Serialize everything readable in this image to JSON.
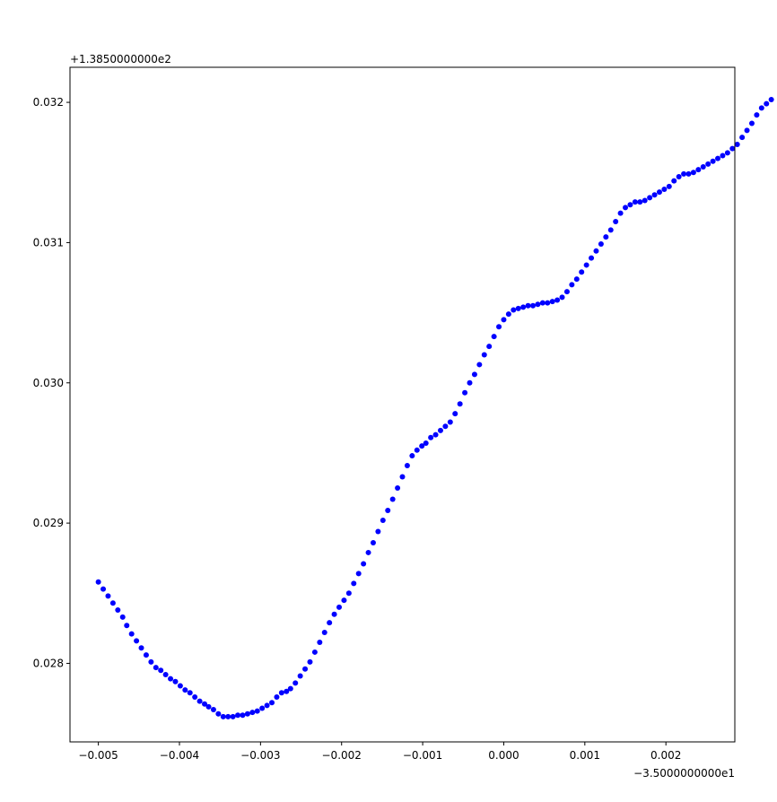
{
  "chart_data": {
    "type": "scatter",
    "title": "",
    "xlabel": "",
    "ylabel": "",
    "x_offset_label": "−3.5000000000e1",
    "y_offset_label": "+1.3850000000e2",
    "xlim": [
      -0.00535,
      0.00285
    ],
    "ylim": [
      0.02744,
      0.03225
    ],
    "x_ticks": [
      -0.005,
      -0.004,
      -0.003,
      -0.002,
      -0.001,
      0.0,
      0.001,
      0.002
    ],
    "x_tick_labels": [
      "−0.005",
      "−0.004",
      "−0.003",
      "−0.002",
      "−0.001",
      "0.000",
      "0.001",
      "0.002"
    ],
    "y_ticks": [
      0.028,
      0.029,
      0.03,
      0.031,
      0.032
    ],
    "y_tick_labels": [
      "0.028",
      "0.029",
      "0.030",
      "0.031",
      "0.032"
    ],
    "grid": false,
    "marker_color": "#0000ff",
    "series": [
      {
        "points": [
          [
            -0.005,
            0.02858
          ],
          [
            -0.00494,
            0.02853
          ],
          [
            -0.00488,
            0.02848
          ],
          [
            -0.00482,
            0.02843
          ],
          [
            -0.00476,
            0.02838
          ],
          [
            -0.0047,
            0.02833
          ],
          [
            -0.00465,
            0.02827
          ],
          [
            -0.00459,
            0.02821
          ],
          [
            -0.00453,
            0.02816
          ],
          [
            -0.00447,
            0.02811
          ],
          [
            -0.00441,
            0.02806
          ],
          [
            -0.00435,
            0.02801
          ],
          [
            -0.00429,
            0.02797
          ],
          [
            -0.00423,
            0.02795
          ],
          [
            -0.00417,
            0.02792
          ],
          [
            -0.00411,
            0.02789
          ],
          [
            -0.00405,
            0.02787
          ],
          [
            -0.00399,
            0.02784
          ],
          [
            -0.00393,
            0.02781
          ],
          [
            -0.00387,
            0.02779
          ],
          [
            -0.00381,
            0.02776
          ],
          [
            -0.00375,
            0.02773
          ],
          [
            -0.00369,
            0.02771
          ],
          [
            -0.00364,
            0.02769
          ],
          [
            -0.00358,
            0.02767
          ],
          [
            -0.00352,
            0.02764
          ],
          [
            -0.00346,
            0.02762
          ],
          [
            -0.0034,
            0.02762
          ],
          [
            -0.00334,
            0.02762
          ],
          [
            -0.00328,
            0.02763
          ],
          [
            -0.00322,
            0.02763
          ],
          [
            -0.00316,
            0.02764
          ],
          [
            -0.0031,
            0.02765
          ],
          [
            -0.00304,
            0.02766
          ],
          [
            -0.00298,
            0.02768
          ],
          [
            -0.00292,
            0.0277
          ],
          [
            -0.00286,
            0.02772
          ],
          [
            -0.0028,
            0.02776
          ],
          [
            -0.00274,
            0.02779
          ],
          [
            -0.00268,
            0.0278
          ],
          [
            -0.00263,
            0.02782
          ],
          [
            -0.00257,
            0.02786
          ],
          [
            -0.00251,
            0.02791
          ],
          [
            -0.00245,
            0.02796
          ],
          [
            -0.00239,
            0.02801
          ],
          [
            -0.00233,
            0.02808
          ],
          [
            -0.00227,
            0.02815
          ],
          [
            -0.00221,
            0.02822
          ],
          [
            -0.00215,
            0.02829
          ],
          [
            -0.00209,
            0.02835
          ],
          [
            -0.00203,
            0.0284
          ],
          [
            -0.00197,
            0.02845
          ],
          [
            -0.00191,
            0.0285
          ],
          [
            -0.00185,
            0.02857
          ],
          [
            -0.00179,
            0.02864
          ],
          [
            -0.00173,
            0.02871
          ],
          [
            -0.00167,
            0.02879
          ],
          [
            -0.00161,
            0.02886
          ],
          [
            -0.00155,
            0.02894
          ],
          [
            -0.00149,
            0.02902
          ],
          [
            -0.00143,
            0.02909
          ],
          [
            -0.00137,
            0.02917
          ],
          [
            -0.00131,
            0.02925
          ],
          [
            -0.00125,
            0.02933
          ],
          [
            -0.00119,
            0.02941
          ],
          [
            -0.00113,
            0.02948
          ],
          [
            -0.00107,
            0.02952
          ],
          [
            -0.00101,
            0.02955
          ],
          [
            -0.00096,
            0.02957
          ],
          [
            -0.0009,
            0.02961
          ],
          [
            -0.00084,
            0.02963
          ],
          [
            -0.00078,
            0.02966
          ],
          [
            -0.00072,
            0.02969
          ],
          [
            -0.00066,
            0.02972
          ],
          [
            -0.0006,
            0.02978
          ],
          [
            -0.00054,
            0.02985
          ],
          [
            -0.00048,
            0.02993
          ],
          [
            -0.00042,
            0.03
          ],
          [
            -0.00036,
            0.03006
          ],
          [
            -0.0003,
            0.03013
          ],
          [
            -0.00024,
            0.0302
          ],
          [
            -0.00018,
            0.03026
          ],
          [
            -0.00012,
            0.03033
          ],
          [
            -6e-05,
            0.0304
          ],
          [
            0.0,
            0.03045
          ],
          [
            6e-05,
            0.03049
          ],
          [
            0.00012,
            0.03052
          ],
          [
            0.00018,
            0.03053
          ],
          [
            0.00024,
            0.03054
          ],
          [
            0.0003,
            0.03055
          ],
          [
            0.00036,
            0.03055
          ],
          [
            0.00042,
            0.03056
          ],
          [
            0.00048,
            0.03057
          ],
          [
            0.00054,
            0.03057
          ],
          [
            0.0006,
            0.03058
          ],
          [
            0.00066,
            0.03059
          ],
          [
            0.00072,
            0.03061
          ],
          [
            0.00078,
            0.03065
          ],
          [
            0.00084,
            0.0307
          ],
          [
            0.0009,
            0.03074
          ],
          [
            0.00096,
            0.03079
          ],
          [
            0.00102,
            0.03084
          ],
          [
            0.00108,
            0.03089
          ],
          [
            0.00114,
            0.03094
          ],
          [
            0.0012,
            0.03099
          ],
          [
            0.00126,
            0.03104
          ],
          [
            0.00132,
            0.03109
          ],
          [
            0.00138,
            0.03115
          ],
          [
            0.00144,
            0.03121
          ],
          [
            0.0015,
            0.03125
          ],
          [
            0.00156,
            0.03127
          ],
          [
            0.00162,
            0.03129
          ],
          [
            0.00168,
            0.03129
          ],
          [
            0.00174,
            0.0313
          ],
          [
            0.0018,
            0.03132
          ],
          [
            0.00186,
            0.03134
          ],
          [
            0.00192,
            0.03136
          ],
          [
            0.00198,
            0.03138
          ],
          [
            0.00204,
            0.0314
          ],
          [
            0.0021,
            0.03144
          ],
          [
            0.00216,
            0.03147
          ],
          [
            0.00222,
            0.03149
          ],
          [
            0.00228,
            0.03149
          ],
          [
            0.00234,
            0.0315
          ],
          [
            0.0024,
            0.03152
          ],
          [
            0.00246,
            0.03154
          ],
          [
            0.00252,
            0.03156
          ],
          [
            0.00258,
            0.03158
          ],
          [
            0.00264,
            0.0316
          ],
          [
            0.0027,
            0.03162
          ],
          [
            0.00276,
            0.03164
          ],
          [
            0.00282,
            0.03167
          ],
          [
            0.00288,
            0.0317
          ],
          [
            0.00294,
            0.03175
          ],
          [
            0.003,
            0.0318
          ],
          [
            0.00306,
            0.03185
          ],
          [
            0.00312,
            0.03191
          ],
          [
            0.00318,
            0.03196
          ],
          [
            0.00324,
            0.03199
          ],
          [
            0.0033,
            0.03202
          ]
        ]
      }
    ]
  }
}
